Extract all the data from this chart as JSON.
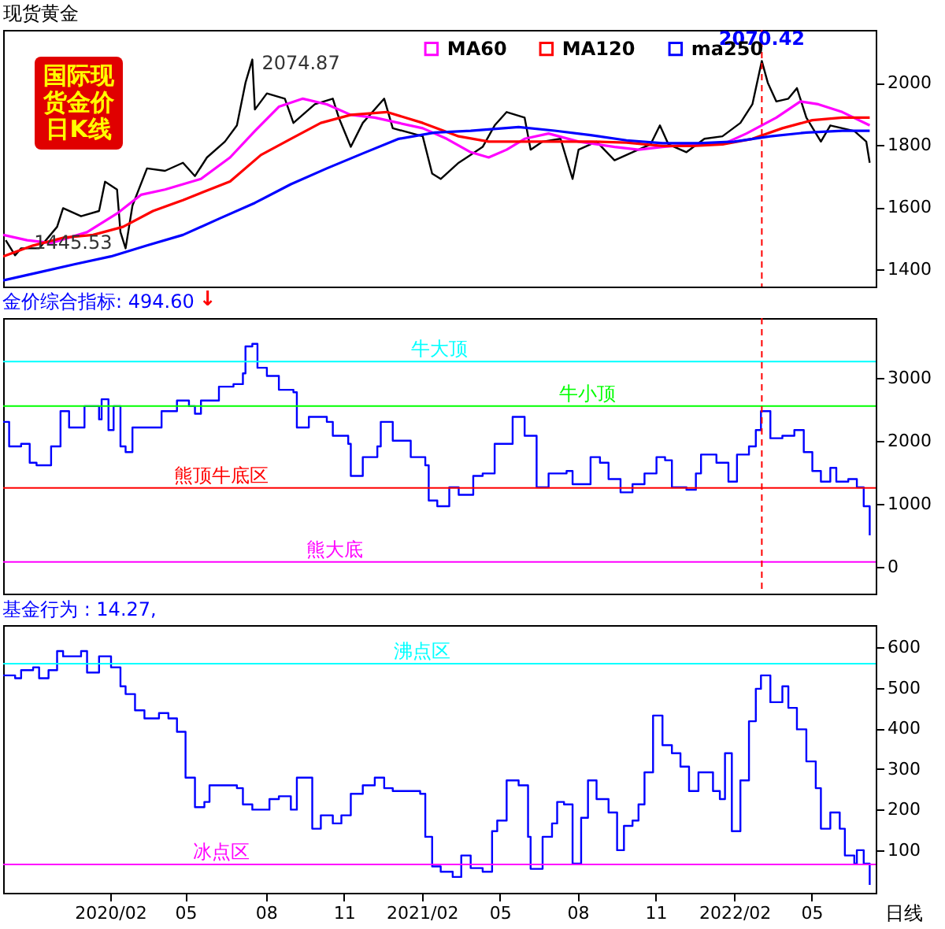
{
  "chart_data": [
    {
      "type": "line",
      "title": "现货黄金",
      "xlim": [
        "2019-10-01",
        "2022-07-16"
      ],
      "ylim": [
        1345,
        2170
      ],
      "yticks": [
        1400,
        1600,
        1800,
        2000
      ],
      "tick_labels": "y",
      "legend": "top",
      "series": [
        {
          "color": "#000000",
          "x": [
            "2019-10-04",
            "2019-10-15",
            "2019-10-22",
            "2019-11-12",
            "2019-12-03",
            "2019-12-10",
            "2019-12-31",
            "2020-01-21",
            "2020-01-28",
            "2020-02-11",
            "2020-02-15",
            "2020-02-21",
            "2020-02-29",
            "2020-03-17",
            "2020-04-07",
            "2020-04-28",
            "2020-05-12",
            "2020-05-26",
            "2020-06-16",
            "2020-06-30",
            "2020-07-10",
            "2020-07-18",
            "2020-07-21",
            "2020-08-04",
            "2020-08-25",
            "2020-09-04",
            "2020-09-29",
            "2020-10-20",
            "2020-10-27",
            "2020-11-10",
            "2020-11-24",
            "2020-12-19",
            "2020-12-29",
            "2021-02-02",
            "2021-02-13",
            "2021-02-23",
            "2021-03-16",
            "2021-03-30",
            "2021-04-13",
            "2021-04-27",
            "2021-05-11",
            "2021-06-01",
            "2021-06-08",
            "2021-06-22",
            "2021-07-13",
            "2021-07-27",
            "2021-08-03",
            "2021-08-24",
            "2021-09-14",
            "2021-10-05",
            "2021-10-26",
            "2021-11-06",
            "2021-11-16",
            "2021-12-07",
            "2021-12-28",
            "2022-01-18",
            "2022-02-08",
            "2022-02-22",
            "2022-03-05",
            "2022-03-12",
            "2022-03-22",
            "2022-04-05",
            "2022-04-15",
            "2022-04-26",
            "2022-05-13",
            "2022-05-24",
            "2022-06-07",
            "2022-06-21",
            "2022-07-05",
            "2022-07-09"
          ],
          "values": [
            1494,
            1445.53,
            1468,
            1468,
            1537,
            1597,
            1571,
            1588,
            1682,
            1657,
            1520,
            1468,
            1605,
            1725,
            1717,
            1743,
            1700,
            1760,
            1811,
            1863,
            2000,
            2074.87,
            1914,
            1966,
            1949,
            1871,
            1931,
            1949,
            1888,
            1794,
            1871,
            1949,
            1854,
            1828,
            1708,
            1691,
            1743,
            1768,
            1794,
            1863,
            1906,
            1888,
            1785,
            1811,
            1820,
            1691,
            1785,
            1811,
            1751,
            1777,
            1802,
            1863,
            1802,
            1777,
            1820,
            1828,
            1871,
            1931,
            2070.42,
            2000,
            1940,
            1949,
            1983,
            1888,
            1811,
            1863,
            1854,
            1845,
            1811,
            1743
          ]
        },
        {
          "name": "MA60",
          "color": "#ff00ff",
          "x": [
            "2019-10-01",
            "2019-10-29",
            "2019-11-26",
            "2020-01-07",
            "2020-02-11",
            "2020-03-10",
            "2020-04-07",
            "2020-05-19",
            "2020-06-22",
            "2020-07-21",
            "2020-08-18",
            "2020-09-15",
            "2020-10-13",
            "2020-11-10",
            "2020-12-08",
            "2021-01-05",
            "2021-02-02",
            "2021-03-02",
            "2021-03-30",
            "2021-04-20",
            "2021-05-11",
            "2021-06-01",
            "2021-06-29",
            "2021-08-03",
            "2021-09-14",
            "2021-10-12",
            "2021-11-09",
            "2021-12-14",
            "2022-01-18",
            "2022-02-15",
            "2022-03-22",
            "2022-04-19",
            "2022-05-10",
            "2022-06-07",
            "2022-07-09"
          ],
          "values": [
            1511,
            1494,
            1485,
            1520,
            1580,
            1640,
            1657,
            1691,
            1760,
            1845,
            1923,
            1949,
            1931,
            1897,
            1888,
            1871,
            1854,
            1820,
            1777,
            1760,
            1785,
            1820,
            1837,
            1811,
            1794,
            1785,
            1794,
            1802,
            1802,
            1837,
            1888,
            1940,
            1931,
            1906,
            1863
          ]
        },
        {
          "name": "MA120",
          "color": "#ff0000",
          "x": [
            "2019-10-01",
            "2019-11-05",
            "2019-12-10",
            "2020-01-14",
            "2020-02-18",
            "2020-03-24",
            "2020-04-28",
            "2020-06-22",
            "2020-07-28",
            "2020-09-01",
            "2020-10-06",
            "2020-11-10",
            "2020-12-22",
            "2021-02-02",
            "2021-03-16",
            "2021-04-20",
            "2021-06-01",
            "2021-07-06",
            "2021-08-17",
            "2021-09-28",
            "2021-11-09",
            "2021-12-14",
            "2022-01-18",
            "2022-02-22",
            "2022-03-29",
            "2022-05-03",
            "2022-06-07",
            "2022-07-09"
          ],
          "values": [
            1442,
            1477,
            1502,
            1511,
            1537,
            1588,
            1623,
            1683,
            1768,
            1820,
            1871,
            1897,
            1906,
            1871,
            1828,
            1811,
            1811,
            1811,
            1811,
            1808,
            1797,
            1797,
            1802,
            1820,
            1854,
            1880,
            1888,
            1888
          ]
        },
        {
          "name": "ma250",
          "color": "#0000ff",
          "x": [
            "2019-10-01",
            "2019-11-12",
            "2019-12-24",
            "2020-02-04",
            "2020-03-17",
            "2020-04-28",
            "2020-06-09",
            "2020-07-21",
            "2020-09-01",
            "2020-10-13",
            "2020-11-24",
            "2021-01-05",
            "2021-02-16",
            "2021-03-30",
            "2021-05-25",
            "2021-07-06",
            "2021-08-17",
            "2021-09-28",
            "2021-11-09",
            "2021-12-21",
            "2022-02-01",
            "2022-03-15",
            "2022-04-26",
            "2022-06-07",
            "2022-07-09"
          ],
          "values": [
            1365,
            1391,
            1417,
            1442,
            1477,
            1511,
            1563,
            1614,
            1674,
            1725,
            1773,
            1820,
            1840,
            1846,
            1858,
            1846,
            1832,
            1815,
            1806,
            1806,
            1811,
            1828,
            1840,
            1846,
            1846
          ]
        }
      ],
      "ref_lines": [
        {
          "axis": "x",
          "value": "2022-03-05",
          "color": "#ff0000",
          "line_style": "dashed"
        }
      ],
      "annotations": [
        "国际现货金价日K线",
        {
          "text": "2074.87",
          "x": "2020-07-18",
          "y": 2074.87
        },
        {
          "text": "1445.53",
          "x": "2019-10-15",
          "y": 1445.53
        },
        {
          "text": "2070.42",
          "x": "2022-03-05",
          "y": 2070.42
        }
      ]
    },
    {
      "type": "step",
      "title": "金价综合指标: 494.60",
      "xlim": [
        "2019-10-01",
        "2022-07-16"
      ],
      "ylim": [
        -430,
        3950
      ],
      "yticks": [
        0,
        1000,
        2000,
        3000
      ],
      "tick_labels": "y",
      "series": [
        {
          "color": "#0000ff",
          "x": [
            "2019-10-01",
            "2019-10-08",
            "2019-10-22",
            "2019-11-01",
            "2019-11-09",
            "2019-11-26",
            "2019-12-07",
            "2019-12-17",
            "2020-01-04",
            "2020-01-21",
            "2020-01-24",
            "2020-02-01",
            "2020-02-07",
            "2020-02-15",
            "2020-02-21",
            "2020-02-29",
            "2020-03-17",
            "2020-04-03",
            "2020-04-21",
            "2020-05-05",
            "2020-05-12",
            "2020-05-19",
            "2020-06-09",
            "2020-06-26",
            "2020-07-07",
            "2020-07-10",
            "2020-07-18",
            "2020-07-24",
            "2020-08-04",
            "2020-08-18",
            "2020-09-04",
            "2020-09-08",
            "2020-09-22",
            "2020-10-13",
            "2020-10-20",
            "2020-11-07",
            "2020-11-10",
            "2020-11-24",
            "2020-12-11",
            "2020-12-15",
            "2020-12-29",
            "2021-01-19",
            "2021-02-05",
            "2021-02-09",
            "2021-02-19",
            "2021-03-05",
            "2021-03-16",
            "2021-04-02",
            "2021-04-13",
            "2021-04-27",
            "2021-05-18",
            "2021-06-01",
            "2021-06-15",
            "2021-06-29",
            "2021-07-20",
            "2021-07-27",
            "2021-08-17",
            "2021-08-28",
            "2021-09-07",
            "2021-09-21",
            "2021-10-05",
            "2021-10-19",
            "2021-11-02",
            "2021-11-12",
            "2021-11-20",
            "2021-12-07",
            "2021-12-18",
            "2021-12-24",
            "2022-01-11",
            "2022-01-25",
            "2022-02-04",
            "2022-02-18",
            "2022-02-26",
            "2022-03-04",
            "2022-03-15",
            "2022-03-29",
            "2022-04-12",
            "2022-04-23",
            "2022-05-03",
            "2022-05-13",
            "2022-05-24",
            "2022-05-31",
            "2022-06-14",
            "2022-06-24",
            "2022-07-02",
            "2022-07-09"
          ],
          "values": [
            2300,
            1910,
            1950,
            1650,
            1610,
            1910,
            2470,
            2210,
            2550,
            2340,
            2660,
            2170,
            2550,
            1910,
            1820,
            2210,
            2210,
            2470,
            2640,
            2550,
            2430,
            2640,
            2860,
            2900,
            3070,
            3500,
            3540,
            3160,
            3030,
            2810,
            2770,
            2210,
            2380,
            2300,
            2080,
            1950,
            1440,
            1740,
            1910,
            2300,
            2000,
            1740,
            1610,
            1050,
            960,
            1260,
            1140,
            1440,
            1480,
            1950,
            2380,
            2080,
            1260,
            1480,
            1520,
            1310,
            1740,
            1650,
            1390,
            1180,
            1310,
            1480,
            1740,
            1690,
            1260,
            1220,
            1480,
            1780,
            1650,
            1350,
            1780,
            1910,
            2170,
            2470,
            2040,
            2080,
            2170,
            1820,
            1520,
            1350,
            1570,
            1350,
            1390,
            1260,
            960,
            494.6
          ]
        }
      ],
      "ref_lines": [
        {
          "axis": "y",
          "value": 3260,
          "label": "牛大顶",
          "color": "#00ffff"
        },
        {
          "axis": "y",
          "value": 2550,
          "label": "牛小顶",
          "color": "#00ff00"
        },
        {
          "axis": "y",
          "value": 1250,
          "label": "熊顶牛底区",
          "color": "#ff0000"
        },
        {
          "axis": "y",
          "value": 75,
          "label": "熊大底",
          "color": "#ff00ff"
        },
        {
          "axis": "x",
          "value": "2022-03-05",
          "color": "#ff0000",
          "line_style": "dashed"
        }
      ],
      "annotations": [
        "↓"
      ]
    },
    {
      "type": "step",
      "title": "基金行为 : 14.27,",
      "xlim": [
        "2019-10-01",
        "2022-07-16"
      ],
      "ylim": [
        -5,
        655
      ],
      "yticks": [
        100,
        200,
        300,
        400,
        500,
        600
      ],
      "xticks": [
        {
          "value": "2020-02-03",
          "label": "2020/02"
        },
        {
          "value": "2020-05-01",
          "label": "05"
        },
        {
          "value": "2020-08-03",
          "label": "08"
        },
        {
          "value": "2020-11-02",
          "label": "11"
        },
        {
          "value": "2021-02-01",
          "label": "2021/02"
        },
        {
          "value": "2021-05-03",
          "label": "05"
        },
        {
          "value": "2021-08-02",
          "label": "08"
        },
        {
          "value": "2021-11-01",
          "label": "11"
        },
        {
          "value": "2022-02-01",
          "label": "2022/02"
        },
        {
          "value": "2022-05-02",
          "label": "05"
        }
      ],
      "series": [
        {
          "color": "#0000ff",
          "x": [
            "2019-10-01",
            "2019-10-15",
            "2019-10-22",
            "2019-11-05",
            "2019-11-12",
            "2019-11-23",
            "2019-12-03",
            "2019-12-10",
            "2019-12-31",
            "2020-01-07",
            "2020-01-21",
            "2020-02-04",
            "2020-02-15",
            "2020-02-21",
            "2020-03-03",
            "2020-03-14",
            "2020-03-31",
            "2020-04-11",
            "2020-04-21",
            "2020-05-01",
            "2020-05-12",
            "2020-05-23",
            "2020-05-29",
            "2020-06-09",
            "2020-06-30",
            "2020-07-07",
            "2020-07-18",
            "2020-07-28",
            "2020-08-07",
            "2020-08-18",
            "2020-09-01",
            "2020-09-08",
            "2020-09-18",
            "2020-09-26",
            "2020-10-06",
            "2020-10-20",
            "2020-10-30",
            "2020-11-10",
            "2020-11-24",
            "2020-12-08",
            "2020-12-19",
            "2020-12-29",
            "2021-01-08",
            "2021-01-30",
            "2021-02-05",
            "2021-02-13",
            "2021-02-23",
            "2021-03-09",
            "2021-03-19",
            "2021-03-30",
            "2021-04-13",
            "2021-04-24",
            "2021-04-30",
            "2021-05-11",
            "2021-05-25",
            "2021-06-05",
            "2021-06-08",
            "2021-06-22",
            "2021-07-03",
            "2021-07-09",
            "2021-07-17",
            "2021-07-27",
            "2021-08-06",
            "2021-08-14",
            "2021-08-24",
            "2021-09-07",
            "2021-09-17",
            "2021-09-25",
            "2021-10-05",
            "2021-10-12",
            "2021-10-19",
            "2021-10-29",
            "2021-11-09",
            "2021-11-20",
            "2021-11-30",
            "2021-12-10",
            "2021-12-21",
            "2022-01-01",
            "2022-01-07",
            "2022-01-15",
            "2022-01-21",
            "2022-01-29",
            "2022-02-08",
            "2022-02-18",
            "2022-02-26",
            "2022-03-04",
            "2022-03-15",
            "2022-03-29",
            "2022-04-05",
            "2022-04-15",
            "2022-04-26",
            "2022-05-07",
            "2022-05-13",
            "2022-05-24",
            "2022-06-04",
            "2022-06-10",
            "2022-06-21",
            "2022-06-24",
            "2022-07-02",
            "2022-07-09"
          ],
          "values": [
            531,
            524,
            544,
            551,
            524,
            544,
            591,
            578,
            591,
            538,
            578,
            551,
            504,
            485,
            445,
            425,
            438,
            425,
            392,
            279,
            206,
            219,
            260,
            260,
            253,
            213,
            200,
            200,
            226,
            233,
            200,
            279,
            279,
            153,
            186,
            166,
            186,
            239,
            260,
            279,
            253,
            246,
            246,
            239,
            133,
            60,
            47,
            34,
            87,
            56,
            47,
            147,
            173,
            272,
            260,
            133,
            54,
            133,
            166,
            219,
            213,
            67,
            180,
            272,
            226,
            193,
            100,
            160,
            173,
            213,
            292,
            432,
            359,
            339,
            306,
            246,
            292,
            292,
            246,
            226,
            339,
            147,
            272,
            418,
            498,
            531,
            465,
            504,
            451,
            398,
            319,
            253,
            153,
            193,
            153,
            87,
            67,
            100,
            67,
            14.27
          ]
        }
      ],
      "ref_lines": [
        {
          "axis": "y",
          "value": 560,
          "label": "沸点区",
          "color": "#00ffff"
        },
        {
          "axis": "y",
          "value": 65,
          "label": "冰点区",
          "color": "#ff00ff"
        }
      ],
      "annotations": [
        "日线"
      ]
    }
  ]
}
